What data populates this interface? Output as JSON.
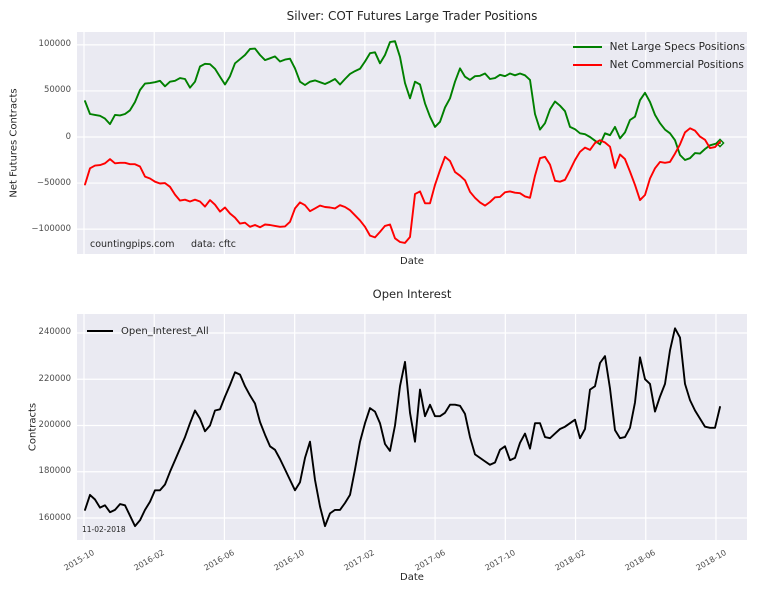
{
  "colors": {
    "plot_bg": "#eaeaf2",
    "grid": "#ffffff",
    "text": "#262626",
    "tick_text": "#4d4d4d",
    "specs": "#008000",
    "commercials": "#ff0000",
    "open_interest": "#000000"
  },
  "chart_data": [
    {
      "type": "line",
      "title": "Silver: COT Futures Large Trader Positions",
      "xlabel": "Date",
      "ylabel": "Net Futures Contracts",
      "grid": true,
      "legend_position": "upper right",
      "show_x_tick_labels": false,
      "x_domain": [
        "2015-10",
        "2018-11"
      ],
      "x_ticks": [
        "2015-10",
        "2016-02",
        "2016-06",
        "2016-10",
        "2017-02",
        "2017-06",
        "2017-10",
        "2018-02",
        "2018-06",
        "2018-10"
      ],
      "y_tick_values": [
        100000,
        50000,
        0,
        -50000,
        -100000
      ],
      "y_tick_labels": [
        "100000",
        "50000",
        "0",
        "−50000",
        "−100000"
      ],
      "ylim": [
        -127000,
        114000
      ],
      "annotations": {
        "watermark": "countingpips.com",
        "source": "data: cftc"
      },
      "series": [
        {
          "name": "Net Large Specs Positions",
          "color": "#008000",
          "end_marker": "diamond",
          "values": [
            39000,
            25000,
            24000,
            23000,
            20000,
            14000,
            24000,
            23500,
            25000,
            29000,
            38000,
            51000,
            58000,
            58500,
            59500,
            61000,
            55000,
            60000,
            61000,
            64000,
            63000,
            53500,
            60000,
            76500,
            79500,
            79000,
            74000,
            65500,
            57000,
            66000,
            80000,
            84500,
            89000,
            95500,
            96000,
            89000,
            83500,
            85500,
            87500,
            82000,
            84000,
            85000,
            74500,
            60000,
            56500,
            60000,
            61500,
            59500,
            57500,
            60000,
            63000,
            57000,
            63000,
            68500,
            71500,
            74000,
            82000,
            91000,
            92000,
            80000,
            89000,
            103000,
            104000,
            87000,
            58500,
            42000,
            60000,
            57000,
            36500,
            22000,
            11000,
            16500,
            32000,
            42000,
            60000,
            74500,
            65500,
            62000,
            66000,
            66500,
            69000,
            63000,
            64000,
            67500,
            66000,
            69000,
            67000,
            69000,
            67000,
            62000,
            25000,
            8000,
            15000,
            30000,
            38500,
            34000,
            28000,
            11000,
            8500,
            4000,
            3000,
            0,
            -4000,
            -8000,
            4000,
            2000,
            11000,
            -1500,
            5000,
            18500,
            22000,
            40000,
            48000,
            38000,
            24000,
            15000,
            8000,
            4000,
            -3500,
            -19500,
            -25000,
            -23000,
            -17500,
            -18000,
            -13000,
            -9000,
            -7500,
            -6500
          ]
        },
        {
          "name": "Net Commercial Positions",
          "color": "#ff0000",
          "end_marker": null,
          "values": [
            -51500,
            -34000,
            -31000,
            -30500,
            -28500,
            -24000,
            -28500,
            -28000,
            -28000,
            -29500,
            -29500,
            -32000,
            -43000,
            -45000,
            -48500,
            -50500,
            -50000,
            -54000,
            -62500,
            -69000,
            -68000,
            -70000,
            -68000,
            -70000,
            -75500,
            -68500,
            -73500,
            -81000,
            -76500,
            -83000,
            -87500,
            -94000,
            -93000,
            -97500,
            -95500,
            -98000,
            -95000,
            -95500,
            -96500,
            -97500,
            -97000,
            -92000,
            -77500,
            -71000,
            -74000,
            -80500,
            -77500,
            -74500,
            -76000,
            -76500,
            -77500,
            -74000,
            -76000,
            -79500,
            -85000,
            -90500,
            -97500,
            -107000,
            -109000,
            -103000,
            -96500,
            -95000,
            -110000,
            -114000,
            -115000,
            -108500,
            -62000,
            -59000,
            -72000,
            -72000,
            -52000,
            -36000,
            -21500,
            -26000,
            -38000,
            -42000,
            -47000,
            -59500,
            -66000,
            -71000,
            -74500,
            -70500,
            -65500,
            -65000,
            -60000,
            -59000,
            -60500,
            -61000,
            -64500,
            -66000,
            -42000,
            -23000,
            -21500,
            -30000,
            -47500,
            -48500,
            -46500,
            -36000,
            -25000,
            -16000,
            -11500,
            -14000,
            -6500,
            -3500,
            -6000,
            -10500,
            -33500,
            -19000,
            -24000,
            -37500,
            -52000,
            -68500,
            -63000,
            -45000,
            -34000,
            -27000,
            -28000,
            -27000,
            -18000,
            -8000,
            5000,
            9500,
            7000,
            500,
            -3000,
            -12000,
            -11000,
            -5000
          ]
        }
      ]
    },
    {
      "type": "line",
      "title": "Open Interest",
      "xlabel": "Date",
      "ylabel": "Contracts",
      "grid": true,
      "legend_position": "upper left",
      "show_x_tick_labels": true,
      "x_domain": [
        "2015-10",
        "2018-11"
      ],
      "x_ticks": [
        "2015-10",
        "2016-02",
        "2016-06",
        "2016-10",
        "2017-02",
        "2017-06",
        "2017-10",
        "2018-02",
        "2018-06",
        "2018-10"
      ],
      "y_tick_values": [
        240000,
        220000,
        200000,
        180000,
        160000
      ],
      "y_tick_labels": [
        "240000",
        "220000",
        "200000",
        "180000",
        "160000"
      ],
      "ylim": [
        150500,
        248200
      ],
      "annotations": {
        "report_date": "11-02-2018"
      },
      "series": [
        {
          "name": "Open_Interest_All",
          "color": "#000000",
          "end_marker": null,
          "values": [
            163500,
            170000,
            168000,
            164500,
            165500,
            162500,
            163500,
            166000,
            165500,
            161000,
            156500,
            159000,
            163500,
            167000,
            172000,
            172000,
            174500,
            180000,
            185000,
            190000,
            195000,
            201000,
            206500,
            203000,
            197500,
            200000,
            206500,
            207000,
            212500,
            217500,
            223000,
            222000,
            217000,
            213000,
            209500,
            201500,
            196000,
            191000,
            189500,
            185500,
            181000,
            176500,
            172000,
            175500,
            186000,
            193000,
            176500,
            165000,
            156500,
            162000,
            163500,
            163500,
            166500,
            170000,
            181000,
            193000,
            201000,
            207500,
            206000,
            201000,
            192000,
            189000,
            200000,
            217000,
            227500,
            205500,
            193000,
            215500,
            204000,
            209000,
            204000,
            204000,
            205500,
            209000,
            209000,
            208500,
            205000,
            195000,
            187500,
            186000,
            184500,
            183000,
            184000,
            189500,
            191000,
            185000,
            186000,
            192500,
            196500,
            190000,
            201000,
            201000,
            195000,
            194500,
            196500,
            198500,
            199500,
            201000,
            202500,
            194500,
            198500,
            215500,
            217000,
            227000,
            230000,
            216000,
            198000,
            194500,
            195000,
            199000,
            210000,
            229500,
            220000,
            218000,
            206000,
            212500,
            218000,
            232500,
            242000,
            238000,
            218000,
            211000,
            206500,
            203000,
            199500,
            199000,
            199000,
            208000
          ]
        }
      ]
    }
  ]
}
